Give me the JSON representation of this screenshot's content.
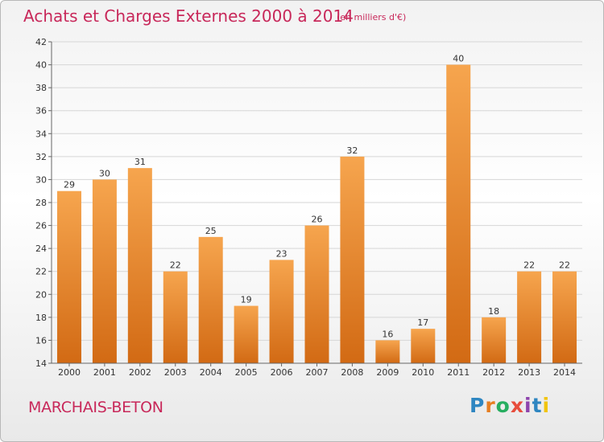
{
  "header": {
    "title": "Achats et Charges Externes 2000 à 2014",
    "unit": "(en milliers d'€)"
  },
  "footer": {
    "location": "MARCHAIS-BETON",
    "logo_letters": [
      "P",
      "r",
      "o",
      "x",
      "i",
      "t",
      "i"
    ],
    "logo_colors": [
      "#2e86c1",
      "#e67e22",
      "#27ae60",
      "#e74c3c",
      "#8e44ad",
      "#2e86c1",
      "#f1c40f"
    ]
  },
  "chart_data": {
    "type": "bar",
    "title": "Achats et Charges Externes 2000 à 2014",
    "subtitle": "(en milliers d'€)",
    "xlabel": "",
    "ylabel": "",
    "categories": [
      "2000",
      "2001",
      "2002",
      "2003",
      "2004",
      "2005",
      "2006",
      "2007",
      "2008",
      "2009",
      "2010",
      "2011",
      "2012",
      "2013",
      "2014"
    ],
    "values": [
      29,
      30,
      31,
      22,
      25,
      19,
      23,
      26,
      32,
      16,
      17,
      40,
      18,
      22,
      22
    ],
    "ylim": [
      14,
      42
    ],
    "yticks": [
      14,
      16,
      18,
      20,
      22,
      24,
      26,
      28,
      30,
      32,
      34,
      36,
      38,
      40,
      42
    ],
    "grid": true,
    "bar_color": "#f0963c",
    "bar_color_dark": "#d26a14"
  }
}
